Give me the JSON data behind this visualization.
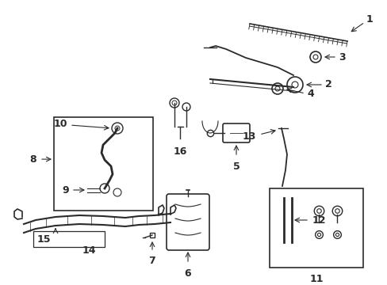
{
  "background_color": "#ffffff",
  "line_color": "#2a2a2a",
  "font_size": 8,
  "fig_width": 4.89,
  "fig_height": 3.6,
  "dpi": 100
}
